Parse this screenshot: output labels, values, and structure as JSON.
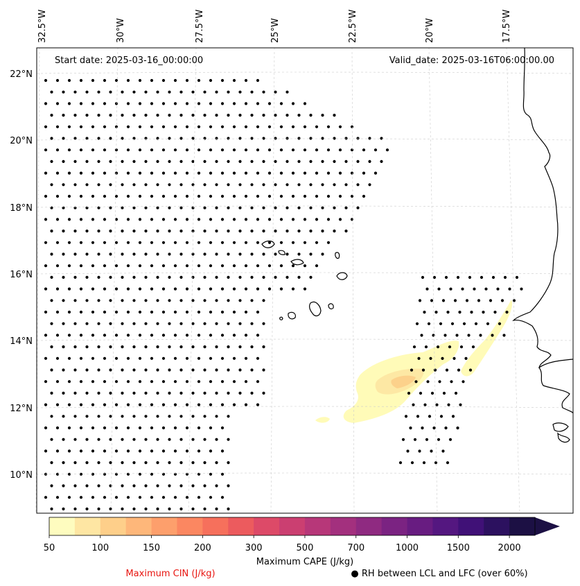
{
  "map": {
    "start_date_text": "Start date: 2025-03-16_00:00:00",
    "valid_date_text": "Valid_date: 2025-03-16T06:00:00.00",
    "lon_labels": [
      {
        "lon": -32.5,
        "text": "32.5°W"
      },
      {
        "lon": -30.0,
        "text": "30°W"
      },
      {
        "lon": -27.5,
        "text": "27.5°W"
      },
      {
        "lon": -25.0,
        "text": "25°W"
      },
      {
        "lon": -22.5,
        "text": "22.5°W"
      },
      {
        "lon": -20.0,
        "text": "20°W"
      },
      {
        "lon": -17.5,
        "text": "17.5°W"
      }
    ],
    "lat_labels": [
      {
        "lat": 22,
        "text": "22°N"
      },
      {
        "lat": 20,
        "text": "20°N"
      },
      {
        "lat": 18,
        "text": "18°N"
      },
      {
        "lat": 16,
        "text": "16°N"
      },
      {
        "lat": 14,
        "text": "14°N"
      },
      {
        "lat": 12,
        "text": "12°N"
      },
      {
        "lat": 10,
        "text": "10°N"
      }
    ],
    "gridlines": true,
    "cape_fill_colors": [
      "#fffbb8",
      "#fde8a4",
      "#fcd18b"
    ]
  },
  "colorbar": {
    "label": "Maximum CAPE (J/kg)",
    "levels": [
      "50",
      "100",
      "150",
      "200",
      "300",
      "500",
      "700",
      "1000",
      "1500",
      "2000"
    ],
    "colors": [
      "#fefcbf",
      "#fee6a3",
      "#fecf8a",
      "#feb77a",
      "#fd9f6c",
      "#fb8761",
      "#f6705c",
      "#ec5b5e",
      "#dd4a68",
      "#cb3f71",
      "#b73779",
      "#a3307e",
      "#8f2a81",
      "#7b2382",
      "#681c81",
      "#541780",
      "#401177",
      "#2c115f",
      "#1c1044"
    ]
  },
  "legend": {
    "cin_label": "Maximum CIN (J/kg)",
    "rh_label": "● RH between LCL and LFC (over 60%)"
  }
}
